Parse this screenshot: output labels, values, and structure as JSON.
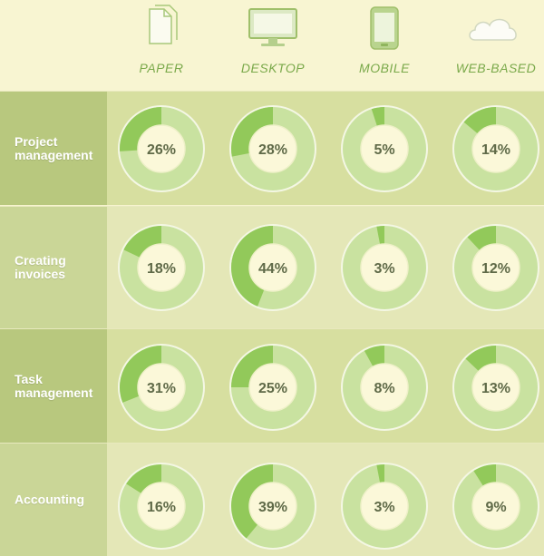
{
  "colors": {
    "background": "#f7f4cf",
    "row_bg_dark": "#d7dfa0",
    "row_bg_light": "#e4e7b7",
    "label_bg_dark": "#b8c87e",
    "label_bg_light": "#cad697",
    "ring_light": "#c9e2a0",
    "ring_accent": "#92c95a",
    "ring_border": "#f4f7e4",
    "center_fill": "#fbf8d9",
    "value_text": "#5f6a48",
    "icon_stroke": "#9fbf6a"
  },
  "columns": [
    {
      "label": "PAPER",
      "icon": "paper-documents-icon"
    },
    {
      "label": "DESKTOP",
      "icon": "desktop-monitor-icon"
    },
    {
      "label": "MOBILE",
      "icon": "mobile-phone-icon"
    },
    {
      "label": "WEB-BASED",
      "icon": "cloud-icon"
    }
  ],
  "rows": [
    {
      "label": "Project\nmanagement"
    },
    {
      "label": "Creating\ninvoices"
    },
    {
      "label": "Task\nmanagement"
    },
    {
      "label": "Accounting"
    }
  ],
  "chart_data": {
    "type": "pie",
    "variant": "donut-grid",
    "categories": [
      "PAPER",
      "DESKTOP",
      "MOBILE",
      "WEB-BASED"
    ],
    "series": [
      {
        "name": "Project management",
        "values": [
          26,
          28,
          5,
          14
        ]
      },
      {
        "name": "Creating invoices",
        "values": [
          18,
          44,
          3,
          12
        ]
      },
      {
        "name": "Task management",
        "values": [
          31,
          25,
          8,
          13
        ]
      },
      {
        "name": "Accounting",
        "values": [
          16,
          39,
          3,
          9
        ]
      }
    ],
    "value_suffix": "%"
  }
}
